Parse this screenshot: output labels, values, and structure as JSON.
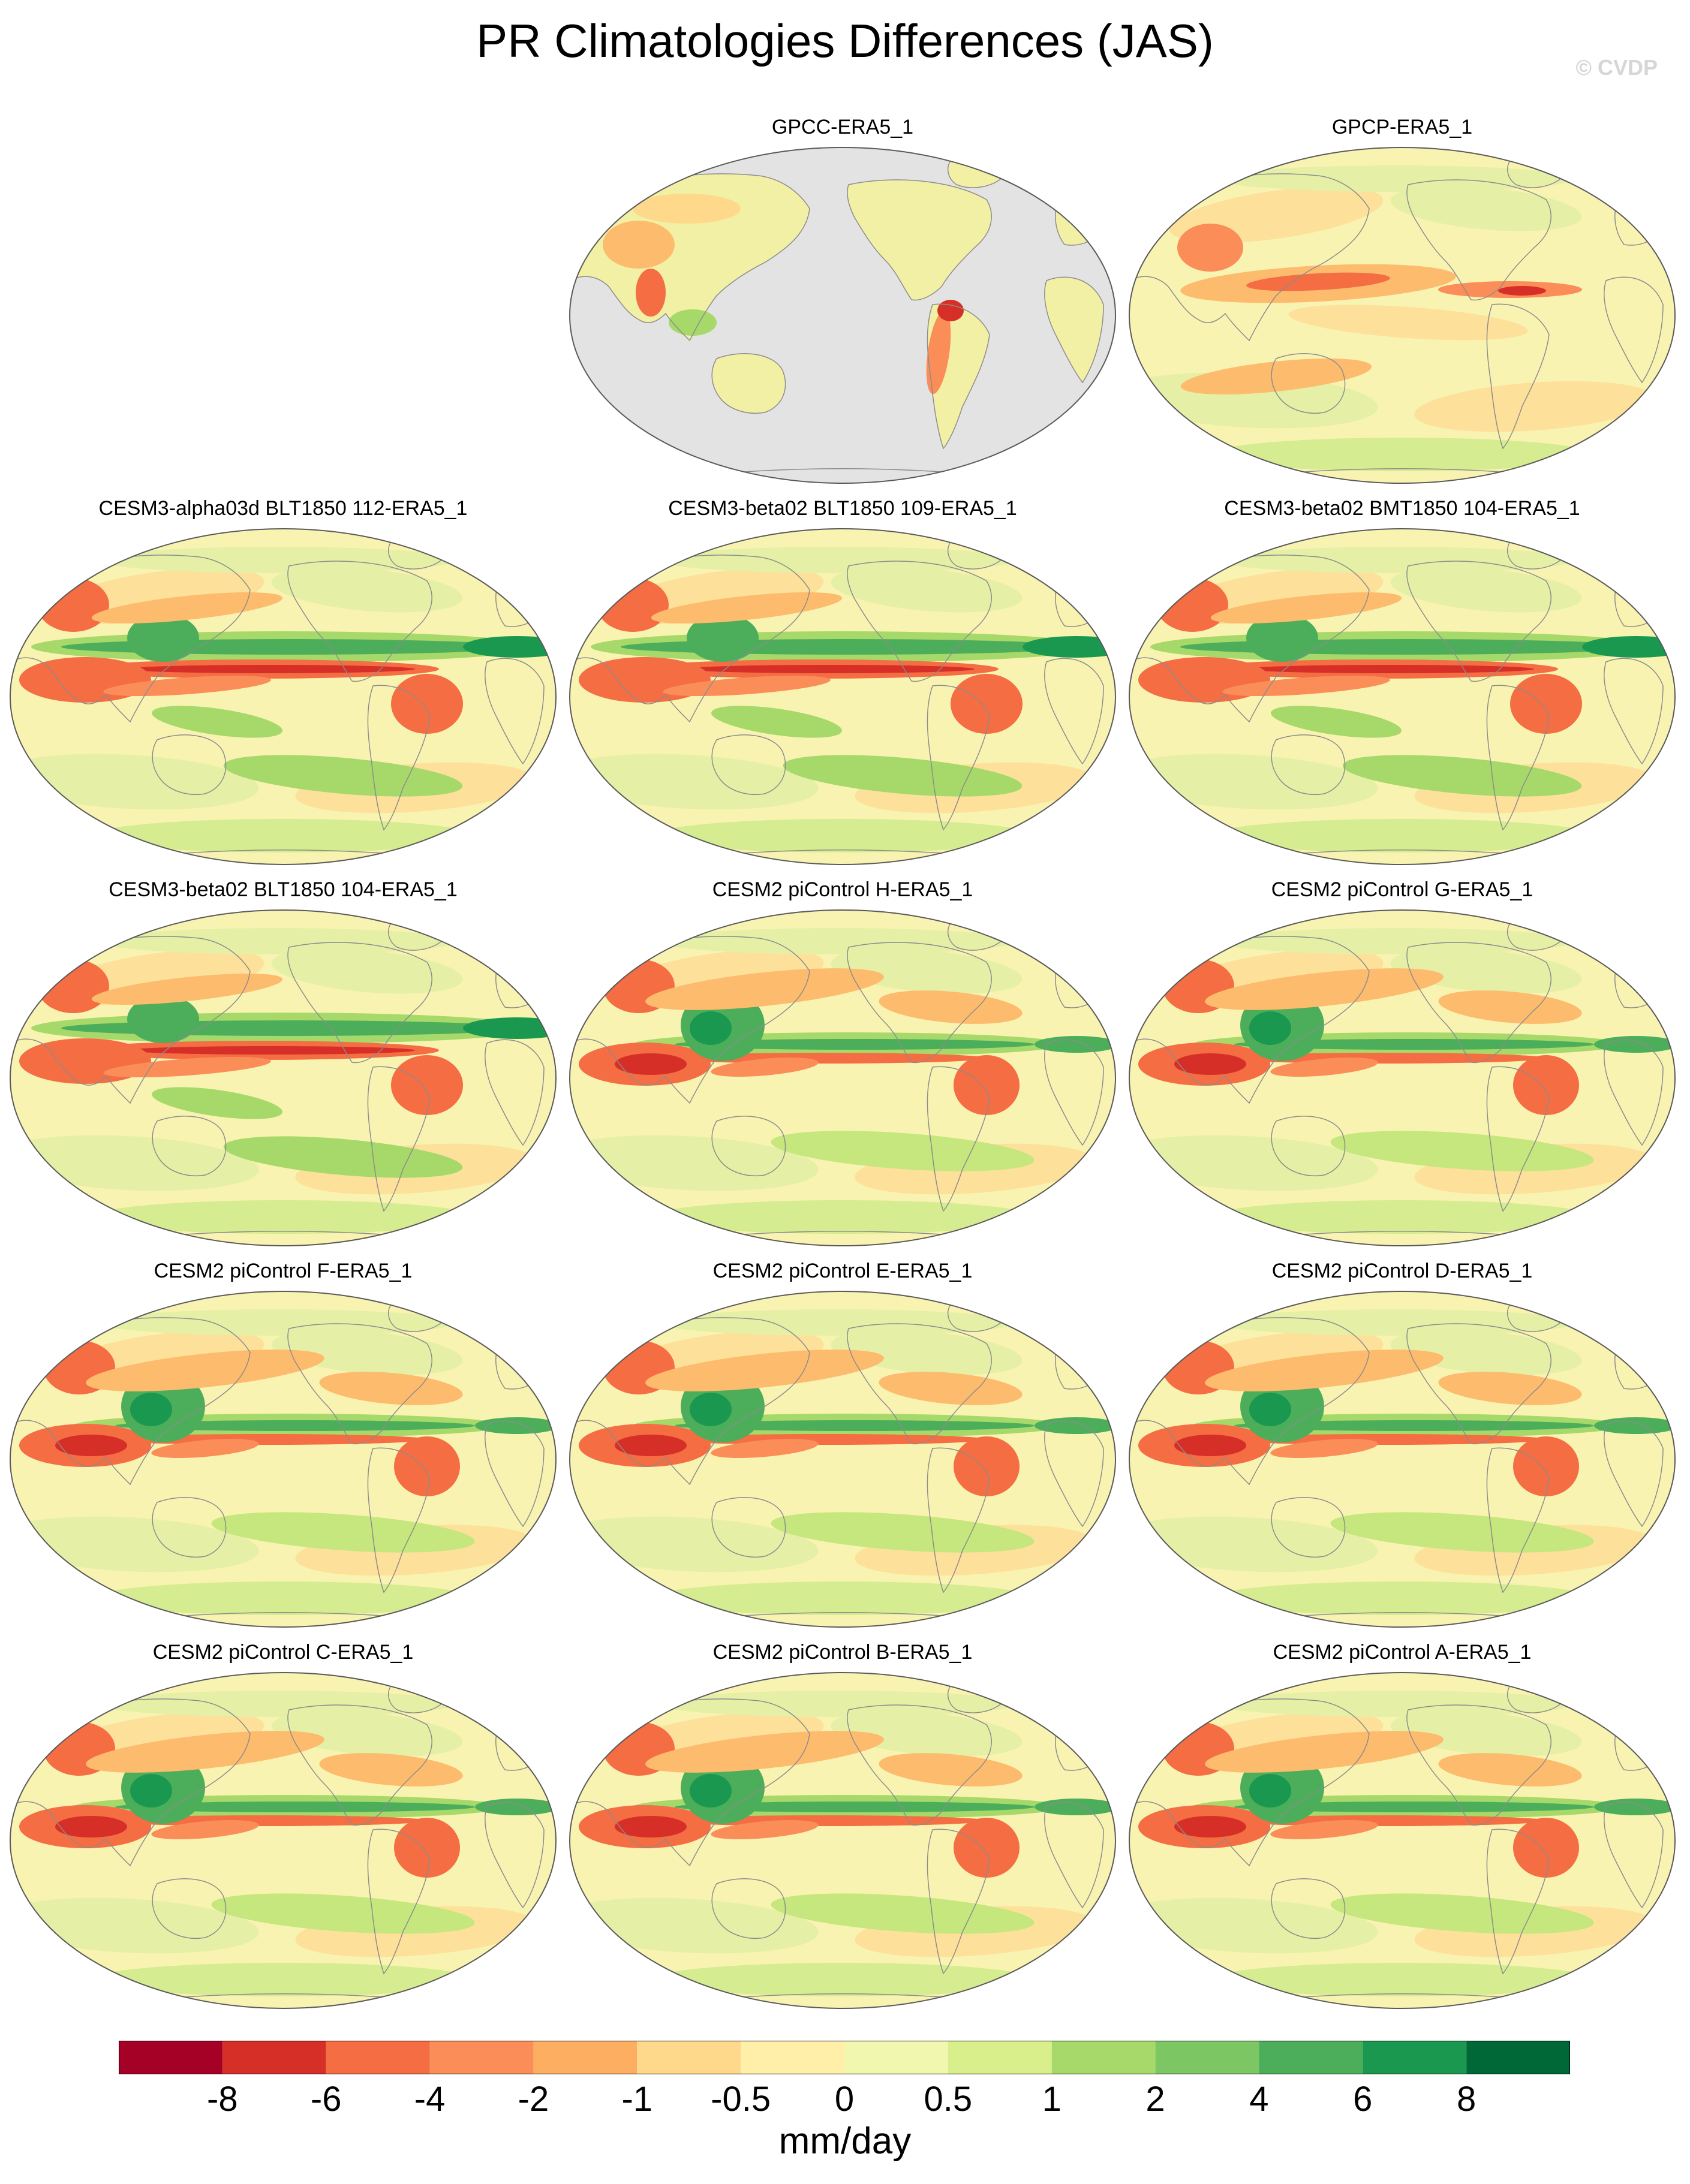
{
  "title": "PR Climatologies Differences (JAS)",
  "watermark": "© CVDP",
  "panels": [
    {
      "title": "GPCC-ERA5_1",
      "row": 0,
      "col": 1,
      "type": "land"
    },
    {
      "title": "GPCP-ERA5_1",
      "row": 0,
      "col": 2,
      "type": "obs"
    },
    {
      "title": "CESM3-alpha03d BLT1850 112-ERA5_1",
      "row": 1,
      "col": 0,
      "type": "cesm3"
    },
    {
      "title": "CESM3-beta02 BLT1850 109-ERA5_1",
      "row": 1,
      "col": 1,
      "type": "cesm3"
    },
    {
      "title": "CESM3-beta02 BMT1850 104-ERA5_1",
      "row": 1,
      "col": 2,
      "type": "cesm3"
    },
    {
      "title": "CESM3-beta02 BLT1850 104-ERA5_1",
      "row": 2,
      "col": 0,
      "type": "cesm3"
    },
    {
      "title": "CESM2 piControl H-ERA5_1",
      "row": 2,
      "col": 1,
      "type": "cesm2"
    },
    {
      "title": "CESM2 piControl G-ERA5_1",
      "row": 2,
      "col": 2,
      "type": "cesm2"
    },
    {
      "title": "CESM2 piControl F-ERA5_1",
      "row": 3,
      "col": 0,
      "type": "cesm2"
    },
    {
      "title": "CESM2 piControl E-ERA5_1",
      "row": 3,
      "col": 1,
      "type": "cesm2"
    },
    {
      "title": "CESM2 piControl D-ERA5_1",
      "row": 3,
      "col": 2,
      "type": "cesm2"
    },
    {
      "title": "CESM2 piControl C-ERA5_1",
      "row": 4,
      "col": 0,
      "type": "cesm2"
    },
    {
      "title": "CESM2 piControl B-ERA5_1",
      "row": 4,
      "col": 1,
      "type": "cesm2"
    },
    {
      "title": "CESM2 piControl A-ERA5_1",
      "row": 4,
      "col": 2,
      "type": "cesm2"
    }
  ],
  "colorbar": {
    "unit": "mm/day",
    "tick_labels": [
      "-8",
      "-6",
      "-4",
      "-2",
      "-1",
      "-0.5",
      "0",
      "0.5",
      "1",
      "2",
      "4",
      "6",
      "8"
    ],
    "colors": [
      "#a50026",
      "#d62f27",
      "#f46d43",
      "#fb8d59",
      "#fdae61",
      "#fed88b",
      "#ffefa8",
      "#f2f7b0",
      "#d9ef8b",
      "#a6d96a",
      "#7cc764",
      "#4cae5b",
      "#1a9850",
      "#006837"
    ]
  },
  "land_mask_color": "#e3e3e3",
  "coastline_color": "#8c8c8c"
}
